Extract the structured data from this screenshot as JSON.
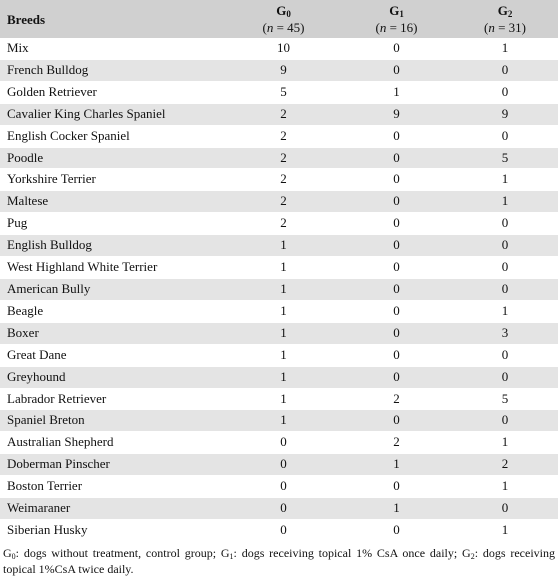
{
  "table": {
    "header": {
      "breeds": "Breeds",
      "groups": [
        {
          "letter": "G",
          "sub": "0",
          "n_label": "n",
          "n_value": " = 45)"
        },
        {
          "letter": "G",
          "sub": "1",
          "n_label": "n",
          "n_value": " = 16)"
        },
        {
          "letter": "G",
          "sub": "2",
          "n_label": "n",
          "n_value": " = 31)"
        }
      ]
    },
    "rows": [
      {
        "breed": "Mix",
        "g0": "10",
        "g1": "0",
        "g2": "1"
      },
      {
        "breed": "French Bulldog",
        "g0": "9",
        "g1": "0",
        "g2": "0"
      },
      {
        "breed": "Golden Retriever",
        "g0": "5",
        "g1": "1",
        "g2": "0"
      },
      {
        "breed": "Cavalier King Charles Spaniel",
        "g0": "2",
        "g1": "9",
        "g2": "9"
      },
      {
        "breed": "English Cocker Spaniel",
        "g0": "2",
        "g1": "0",
        "g2": "0"
      },
      {
        "breed": "Poodle",
        "g0": "2",
        "g1": "0",
        "g2": "5"
      },
      {
        "breed": "Yorkshire Terrier",
        "g0": "2",
        "g1": "0",
        "g2": "1"
      },
      {
        "breed": "Maltese",
        "g0": "2",
        "g1": "0",
        "g2": "1"
      },
      {
        "breed": "Pug",
        "g0": "2",
        "g1": "0",
        "g2": "0"
      },
      {
        "breed": "English Bulldog",
        "g0": "1",
        "g1": "0",
        "g2": "0"
      },
      {
        "breed": "West Highland White Terrier",
        "g0": "1",
        "g1": "0",
        "g2": "0"
      },
      {
        "breed": "American Bully",
        "g0": "1",
        "g1": "0",
        "g2": "0"
      },
      {
        "breed": "Beagle",
        "g0": "1",
        "g1": "0",
        "g2": "1"
      },
      {
        "breed": "Boxer",
        "g0": "1",
        "g1": "0",
        "g2": "3"
      },
      {
        "breed": "Great Dane",
        "g0": "1",
        "g1": "0",
        "g2": "0"
      },
      {
        "breed": "Greyhound",
        "g0": "1",
        "g1": "0",
        "g2": "0"
      },
      {
        "breed": "Labrador Retriever",
        "g0": "1",
        "g1": "2",
        "g2": "5"
      },
      {
        "breed": "Spaniel Breton",
        "g0": "1",
        "g1": "0",
        "g2": "0"
      },
      {
        "breed": "Australian Shepherd",
        "g0": "0",
        "g1": "2",
        "g2": "1"
      },
      {
        "breed": "Doberman Pinscher",
        "g0": "0",
        "g1": "1",
        "g2": "2"
      },
      {
        "breed": "Boston Terrier",
        "g0": "0",
        "g1": "0",
        "g2": "1"
      },
      {
        "breed": "Weimaraner",
        "g0": "0",
        "g1": "1",
        "g2": "0"
      },
      {
        "breed": "Siberian Husky",
        "g0": "0",
        "g1": "0",
        "g2": "1"
      }
    ]
  },
  "footnote": {
    "parts": [
      {
        "letter": "G",
        "sub": "0",
        "text": ": dogs without treatment, control group; "
      },
      {
        "letter": "G",
        "sub": "1",
        "text": ": dogs receiving topical 1% CsA once daily; "
      },
      {
        "letter": "G",
        "sub": "2",
        "text": ": dogs receiving topical 1%CsA twice daily."
      }
    ]
  }
}
